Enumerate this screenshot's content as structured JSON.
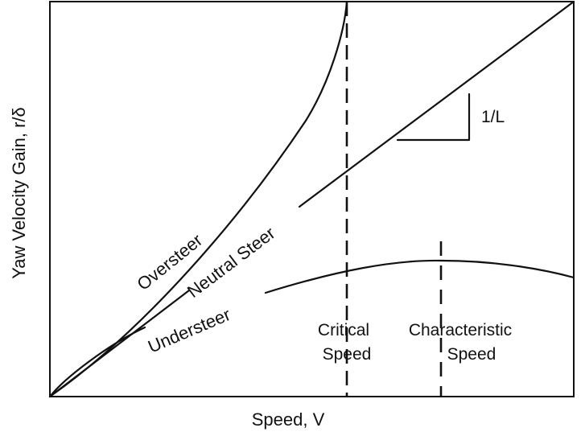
{
  "axes": {
    "x_label": "Speed, V",
    "y_label": "Yaw Velocity Gain, r/δ"
  },
  "curves": {
    "oversteer": "Oversteer",
    "neutral": "Neutral Steer",
    "understeer": "Understeer"
  },
  "markers": {
    "critical_line1": "Critical",
    "critical_line2": "Speed",
    "characteristic_line1": "Characteristic",
    "characteristic_line2": "Speed"
  },
  "slope_label": "1/L",
  "colors": {
    "ink": "#111111",
    "background": "#ffffff"
  }
}
